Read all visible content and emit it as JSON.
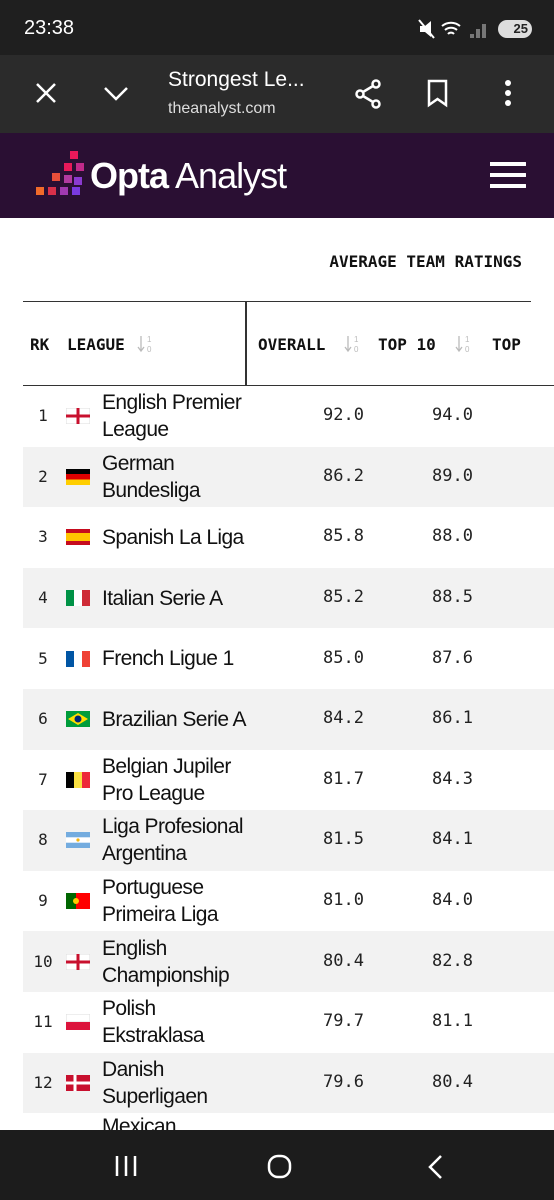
{
  "status": {
    "time": "23:38",
    "battery": "25"
  },
  "browser": {
    "title": "Strongest Le...",
    "url": "theanalyst.com"
  },
  "site": {
    "brand_bold": "Opta",
    "brand_light": "Analyst"
  },
  "table": {
    "group_header": "AVERAGE TEAM RATINGS",
    "columns": [
      "RK",
      "LEAGUE",
      "OVERALL",
      "TOP 10",
      "TOP"
    ],
    "rows": [
      {
        "rank": 1,
        "league": "English Premier League",
        "overall": "92.0",
        "top10": "94.0"
      },
      {
        "rank": 2,
        "league": "German Bundesliga",
        "overall": "86.2",
        "top10": "89.0"
      },
      {
        "rank": 3,
        "league": "Spanish La Liga",
        "overall": "85.8",
        "top10": "88.0"
      },
      {
        "rank": 4,
        "league": "Italian Serie A",
        "overall": "85.2",
        "top10": "88.5"
      },
      {
        "rank": 5,
        "league": "French Ligue 1",
        "overall": "85.0",
        "top10": "87.6"
      },
      {
        "rank": 6,
        "league": "Brazilian Serie A",
        "overall": "84.2",
        "top10": "86.1"
      },
      {
        "rank": 7,
        "league": "Belgian Jupiler Pro League",
        "overall": "81.7",
        "top10": "84.3"
      },
      {
        "rank": 8,
        "league": "Liga Profesional Argentina",
        "overall": "81.5",
        "top10": "84.1"
      },
      {
        "rank": 9,
        "league": "Portuguese Primeira Liga",
        "overall": "81.0",
        "top10": "84.0"
      },
      {
        "rank": 10,
        "league": "English Championship",
        "overall": "80.4",
        "top10": "82.8"
      },
      {
        "rank": 11,
        "league": "Polish Ekstraklasa",
        "overall": "79.7",
        "top10": "81.1"
      },
      {
        "rank": 12,
        "league": "Danish Superligaen",
        "overall": "79.6",
        "top10": "80.4"
      },
      {
        "league": "Mexican"
      }
    ]
  }
}
